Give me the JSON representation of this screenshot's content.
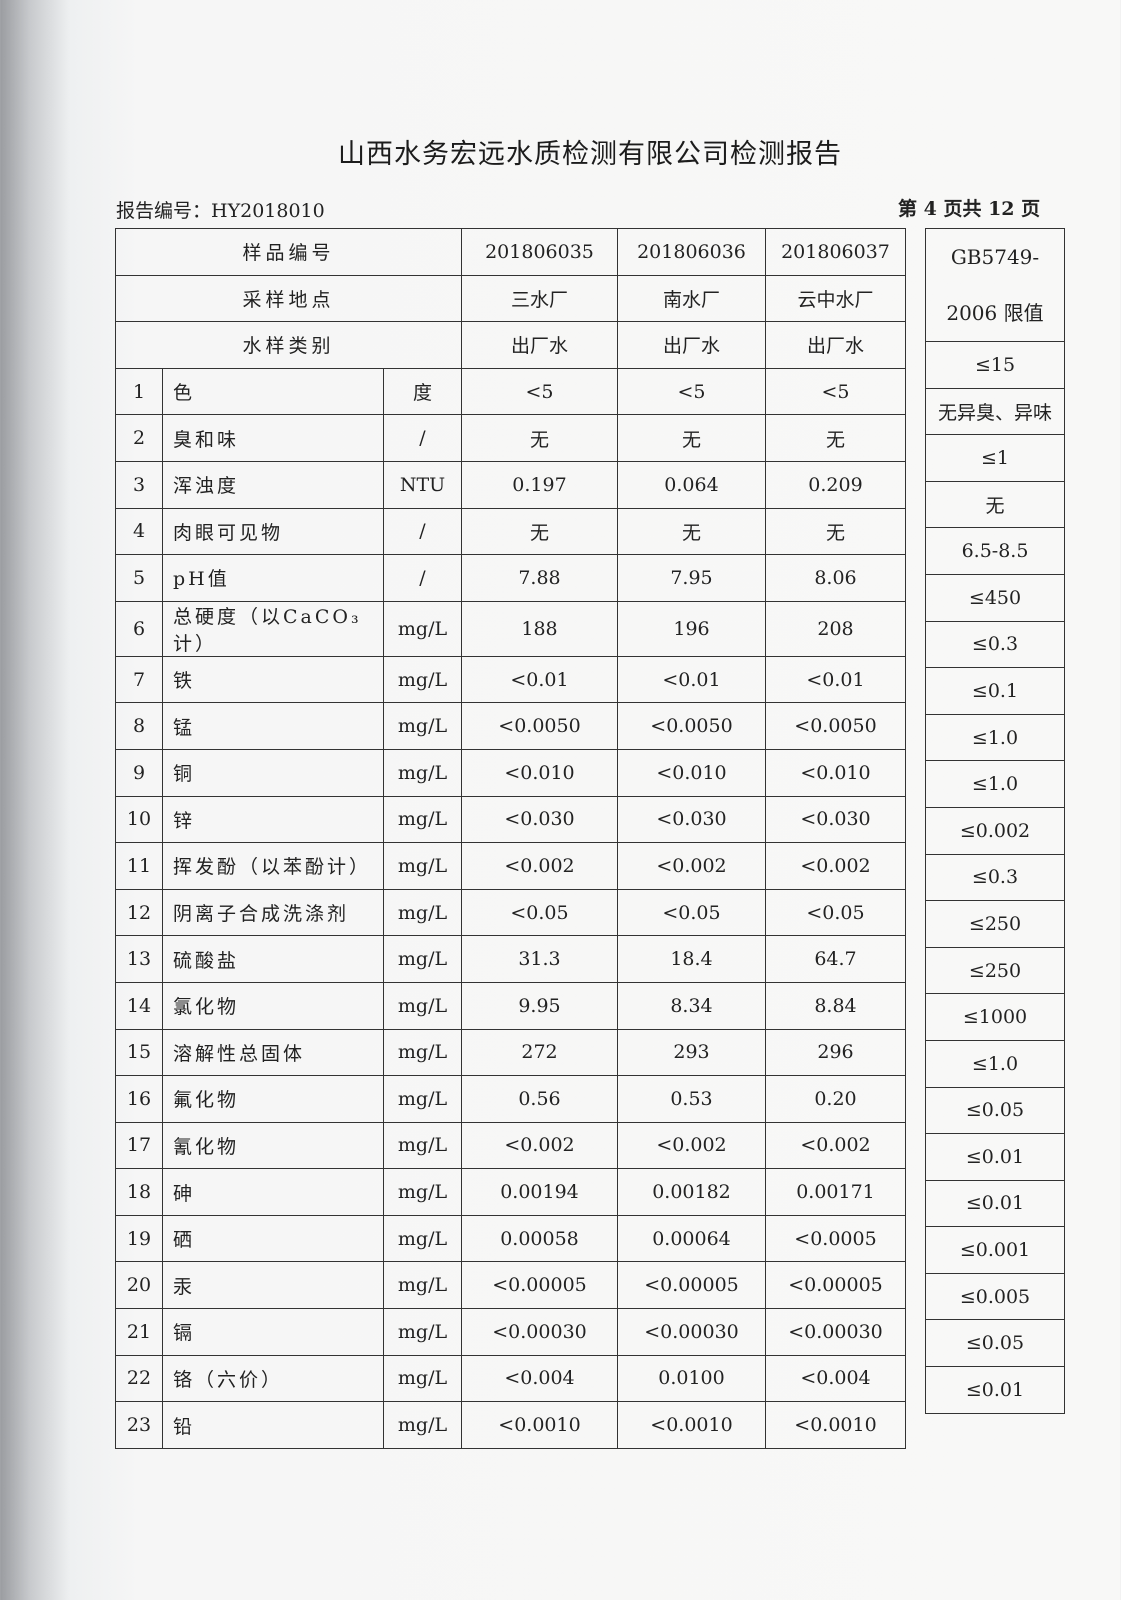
{
  "title": "山西水务宏远水质检测有限公司检测报告",
  "report_no": "报告编号：HY2018010",
  "page_no": "第 4 页共 12 页",
  "header": {
    "labels": [
      "样品编号",
      "采样地点",
      "水样类别"
    ],
    "samples": [
      {
        "id": "201806035",
        "site": "三水厂",
        "type": "出厂水"
      },
      {
        "id": "201806036",
        "site": "南水厂",
        "type": "出厂水"
      },
      {
        "id": "201806037",
        "site": "云中水厂",
        "type": "出厂水"
      }
    ],
    "standard_line1": "GB5749-",
    "standard_line2": "2006 限值"
  },
  "rows": [
    {
      "no": "1",
      "item": "色",
      "unit": "度",
      "v": [
        "<5",
        "<5",
        "<5"
      ],
      "limit": "≤15"
    },
    {
      "no": "2",
      "item": "臭和味",
      "unit": "/",
      "v": [
        "无",
        "无",
        "无"
      ],
      "limit": "无异臭、异味"
    },
    {
      "no": "3",
      "item": "浑浊度",
      "unit": "NTU",
      "v": [
        "0.197",
        "0.064",
        "0.209"
      ],
      "limit": "≤1"
    },
    {
      "no": "4",
      "item": "肉眼可见物",
      "unit": "/",
      "v": [
        "无",
        "无",
        "无"
      ],
      "limit": "无"
    },
    {
      "no": "5",
      "item": "pH值",
      "unit": "/",
      "v": [
        "7.88",
        "7.95",
        "8.06"
      ],
      "limit": "6.5-8.5"
    },
    {
      "no": "6",
      "item": "总硬度（以CaCO₃计）",
      "unit": "mg/L",
      "v": [
        "188",
        "196",
        "208"
      ],
      "limit": "≤450"
    },
    {
      "no": "7",
      "item": "铁",
      "unit": "mg/L",
      "v": [
        "<0.01",
        "<0.01",
        "<0.01"
      ],
      "limit": "≤0.3"
    },
    {
      "no": "8",
      "item": "锰",
      "unit": "mg/L",
      "v": [
        "<0.0050",
        "<0.0050",
        "<0.0050"
      ],
      "limit": "≤0.1"
    },
    {
      "no": "9",
      "item": "铜",
      "unit": "mg/L",
      "v": [
        "<0.010",
        "<0.010",
        "<0.010"
      ],
      "limit": "≤1.0"
    },
    {
      "no": "10",
      "item": "锌",
      "unit": "mg/L",
      "v": [
        "<0.030",
        "<0.030",
        "<0.030"
      ],
      "limit": "≤1.0"
    },
    {
      "no": "11",
      "item": "挥发酚（以苯酚计）",
      "unit": "mg/L",
      "v": [
        "<0.002",
        "<0.002",
        "<0.002"
      ],
      "limit": "≤0.002"
    },
    {
      "no": "12",
      "item": "阴离子合成洗涤剂",
      "unit": "mg/L",
      "v": [
        "<0.05",
        "<0.05",
        "<0.05"
      ],
      "limit": "≤0.3"
    },
    {
      "no": "13",
      "item": "硫酸盐",
      "unit": "mg/L",
      "v": [
        "31.3",
        "18.4",
        "64.7"
      ],
      "limit": "≤250"
    },
    {
      "no": "14",
      "item": "氯化物",
      "unit": "mg/L",
      "v": [
        "9.95",
        "8.34",
        "8.84"
      ],
      "limit": "≤250"
    },
    {
      "no": "15",
      "item": "溶解性总固体",
      "unit": "mg/L",
      "v": [
        "272",
        "293",
        "296"
      ],
      "limit": "≤1000"
    },
    {
      "no": "16",
      "item": "氟化物",
      "unit": "mg/L",
      "v": [
        "0.56",
        "0.53",
        "0.20"
      ],
      "limit": "≤1.0"
    },
    {
      "no": "17",
      "item": "氰化物",
      "unit": "mg/L",
      "v": [
        "<0.002",
        "<0.002",
        "<0.002"
      ],
      "limit": "≤0.05"
    },
    {
      "no": "18",
      "item": "砷",
      "unit": "mg/L",
      "v": [
        "0.00194",
        "0.00182",
        "0.00171"
      ],
      "limit": "≤0.01"
    },
    {
      "no": "19",
      "item": "硒",
      "unit": "mg/L",
      "v": [
        "0.00058",
        "0.00064",
        "<0.0005"
      ],
      "limit": "≤0.01"
    },
    {
      "no": "20",
      "item": "汞",
      "unit": "mg/L",
      "v": [
        "<0.00005",
        "<0.00005",
        "<0.00005"
      ],
      "limit": "≤0.001"
    },
    {
      "no": "21",
      "item": "镉",
      "unit": "mg/L",
      "v": [
        "<0.00030",
        "<0.00030",
        "<0.00030"
      ],
      "limit": "≤0.005"
    },
    {
      "no": "22",
      "item": "铬（六价）",
      "unit": "mg/L",
      "v": [
        "<0.004",
        "0.0100",
        "<0.004"
      ],
      "limit": "≤0.05"
    },
    {
      "no": "23",
      "item": "铅",
      "unit": "mg/L",
      "v": [
        "<0.0010",
        "<0.0010",
        "<0.0010"
      ],
      "limit": "≤0.01"
    }
  ]
}
